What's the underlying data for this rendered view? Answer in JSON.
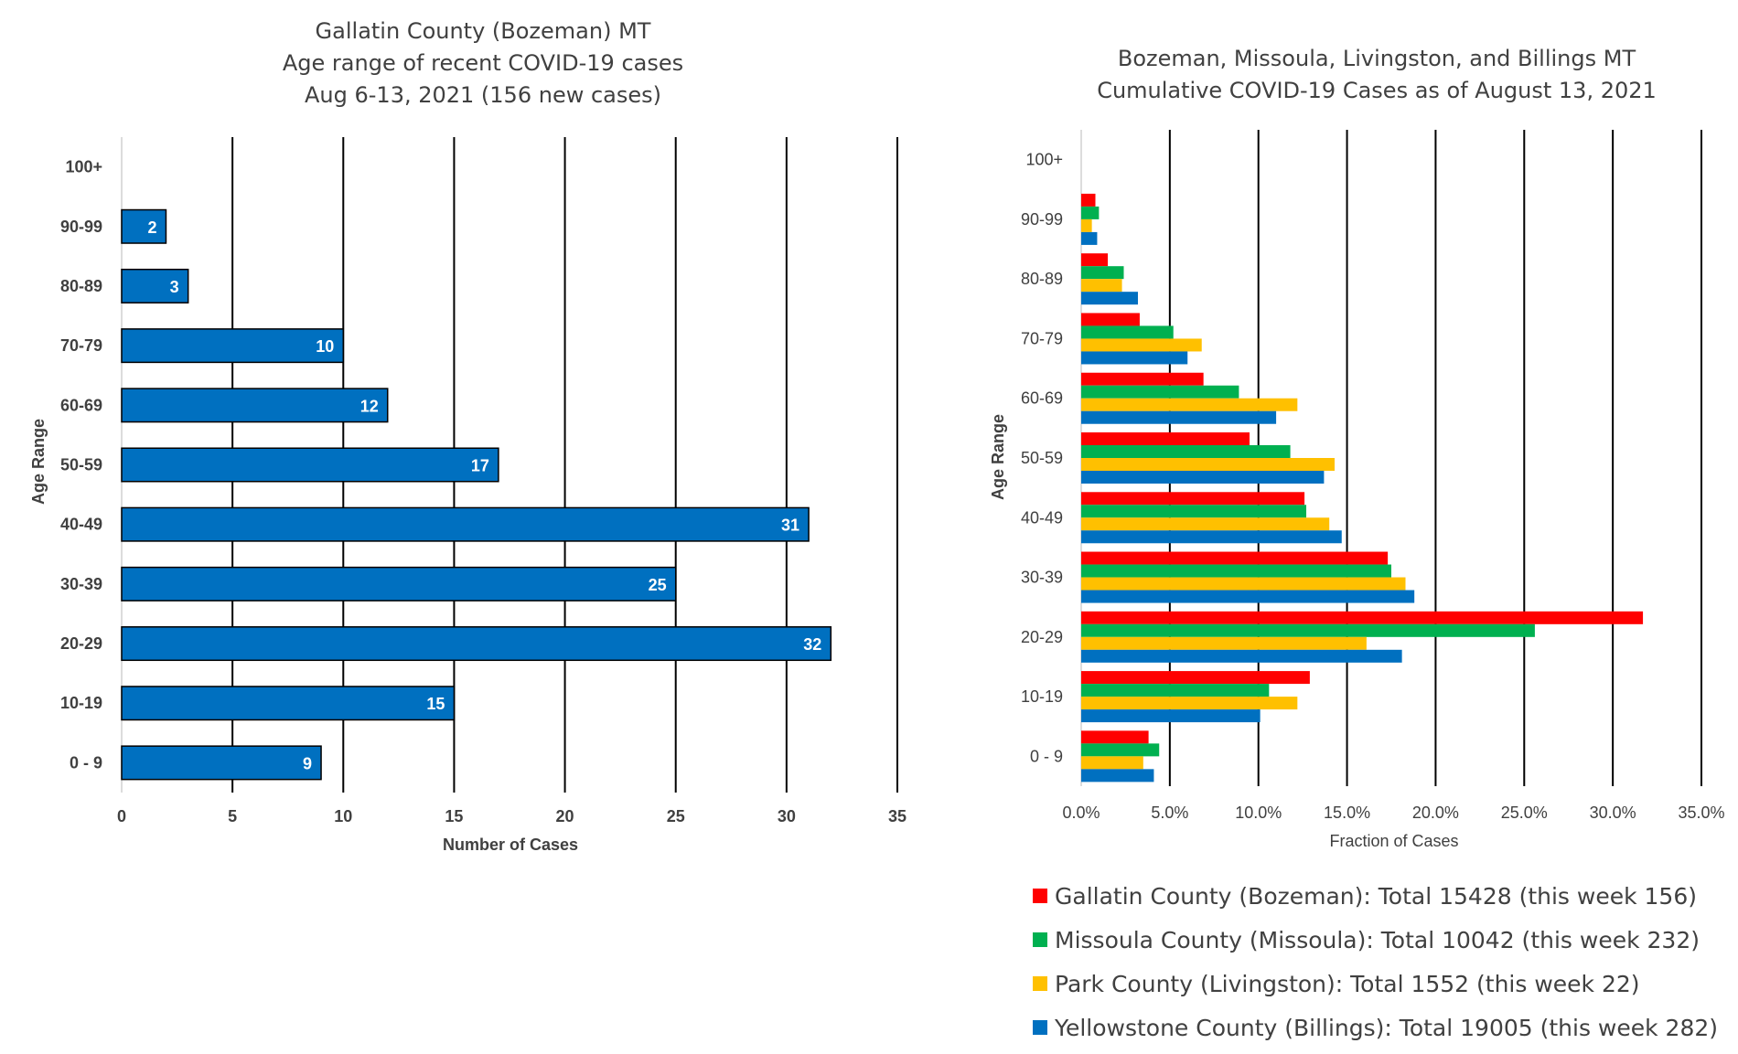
{
  "chart_data": [
    {
      "type": "bar",
      "orientation": "horizontal",
      "title": [
        "Gallatin County (Bozeman) MT",
        "Age range of recent COVID-19 cases",
        "Aug 6-13, 2021 (156 new cases)"
      ],
      "xlabel": "Number of Cases",
      "ylabel": "Age Range",
      "categories": [
        "100+",
        "90-99",
        "80-89",
        "70-79",
        "60-69",
        "50-59",
        "40-49",
        "30-39",
        "20-29",
        "10-19",
        "0 - 9"
      ],
      "values": [
        null,
        2,
        3,
        10,
        12,
        17,
        31,
        25,
        32,
        15,
        9
      ],
      "xlim": [
        0,
        35
      ],
      "xticks": [
        "0",
        "5",
        "10",
        "15",
        "20",
        "25",
        "30",
        "35"
      ],
      "grid": true,
      "data_labels": true,
      "color": "#0070C0"
    },
    {
      "type": "bar",
      "orientation": "horizontal",
      "title": [
        "Bozeman, Missoula, Livingston, and Billings MT",
        "Cumulative COVID-19 Cases as of August 13, 2021"
      ],
      "xlabel": "Fraction of Cases",
      "ylabel": "Age Range",
      "categories": [
        "100+",
        "90-99",
        "80-89",
        "70-79",
        "60-69",
        "50-59",
        "40-49",
        "30-39",
        "20-29",
        "10-19",
        "0 - 9"
      ],
      "xlim": [
        0,
        0.35
      ],
      "xticks": [
        "0.0%",
        "5.0%",
        "10.0%",
        "15.0%",
        "20.0%",
        "25.0%",
        "30.0%",
        "35.0%"
      ],
      "grid": true,
      "legend_position": "bottom",
      "series": [
        {
          "name": "Gallatin County (Bozeman): Total 15428 (this week 156)",
          "color": "#FF0000",
          "values": [
            0,
            0.008,
            0.015,
            0.033,
            0.069,
            0.095,
            0.126,
            0.173,
            0.317,
            0.129,
            0.038
          ]
        },
        {
          "name": "Missoula County (Missoula): Total 10042 (this week 232)",
          "color": "#00B050",
          "values": [
            0,
            0.01,
            0.024,
            0.052,
            0.089,
            0.118,
            0.127,
            0.175,
            0.256,
            0.106,
            0.044
          ]
        },
        {
          "name": "Park County (Livingston): Total 1552 (this week 22)",
          "color": "#FFC000",
          "values": [
            0,
            0.006,
            0.023,
            0.068,
            0.122,
            0.143,
            0.14,
            0.183,
            0.161,
            0.122,
            0.035
          ]
        },
        {
          "name": "Yellowstone County (Billings): Total 19005 (this week 282)",
          "color": "#0070C0",
          "values": [
            0,
            0.009,
            0.032,
            0.06,
            0.11,
            0.137,
            0.147,
            0.188,
            0.181,
            0.101,
            0.041
          ]
        }
      ]
    }
  ]
}
